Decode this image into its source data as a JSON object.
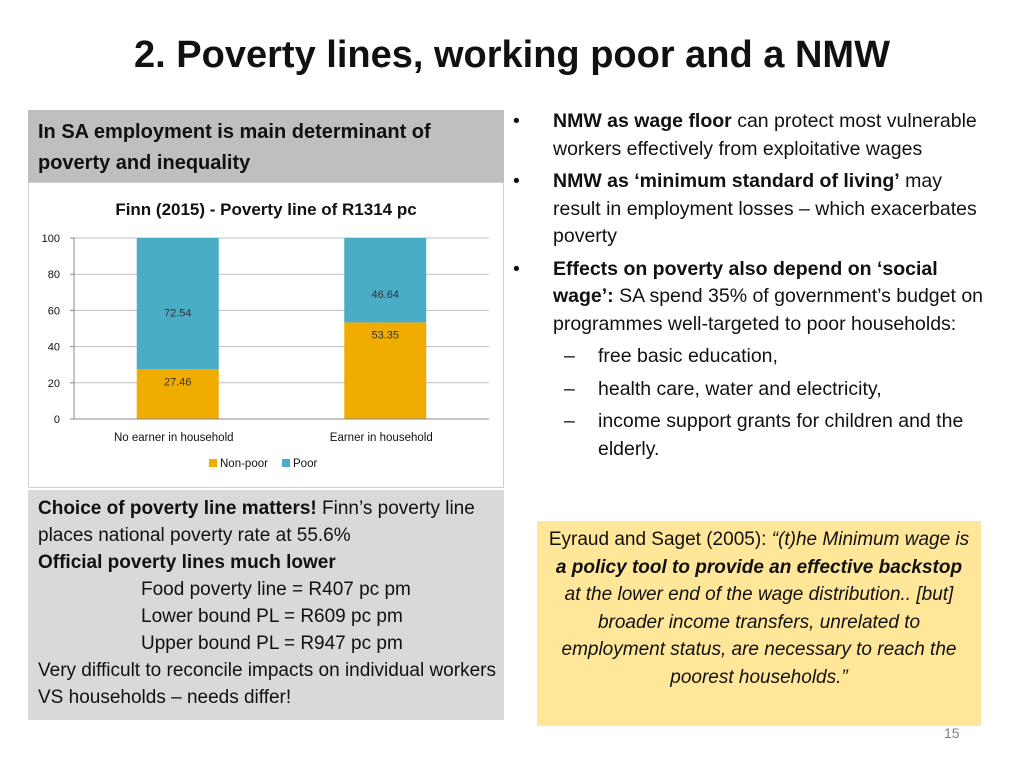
{
  "slide": {
    "title": "2. Poverty lines, working poor and a NMW",
    "page_number": "15"
  },
  "left_panel": {
    "heading": "In SA employment is main determinant of poverty and inequality",
    "choice_bold": "Choice of poverty line matters!",
    "choice_rest": " Finn’s poverty line places national poverty rate at 55.6%",
    "official_bold": "Official poverty lines much lower",
    "lines": [
      "Food poverty line = R407 pc pm",
      "Lower bound PL =  R609 pc pm",
      "Upper bound PL = R947 pc pm"
    ],
    "closing": "Very difficult to reconcile impacts on individual workers VS households – needs differ!"
  },
  "chart_data": {
    "type": "bar",
    "stacked": true,
    "title": "Finn (2015) - Poverty line of R1314 pc",
    "categories": [
      "No earner in household",
      "Earner in household"
    ],
    "series": [
      {
        "name": "Non-poor",
        "values": [
          27.46,
          53.35
        ],
        "color": "#f0ad00"
      },
      {
        "name": "Poor",
        "values": [
          72.54,
          46.64
        ],
        "color": "#4bacc6"
      }
    ],
    "ylim": [
      0,
      100
    ],
    "yticks": [
      0,
      20,
      40,
      60,
      80,
      100
    ],
    "legend": "bottom",
    "grid": true
  },
  "bullets": {
    "b1_bold": "NMW as wage floor",
    "b1_rest": " can protect most vulnerable workers effectively from exploitative wages",
    "b2_bold": "NMW as ‘minimum standard of living’",
    "b2_rest": " may result in employment losses – which exacerbates poverty",
    "b3_bold": "Effects on poverty also depend on ‘social wage’:",
    "b3_rest": " SA spend 35% of government’s budget on programmes well-targeted to poor households:",
    "b3_subs": [
      "free basic education,",
      "health care, water and electricity,",
      "income support grants for children and the elderly."
    ],
    "bullet_char": "•",
    "dash_char": "–"
  },
  "quote": {
    "source": "Eyraud and Saget (2005): ",
    "part1": "“(t)he Minimum wage is ",
    "bold": "a policy tool to provide an effective backstop",
    "part2": " at the lower end of the wage distribution.. [but] broader income transfers, unrelated to employment status, are necessary to reach the poorest households.”"
  }
}
